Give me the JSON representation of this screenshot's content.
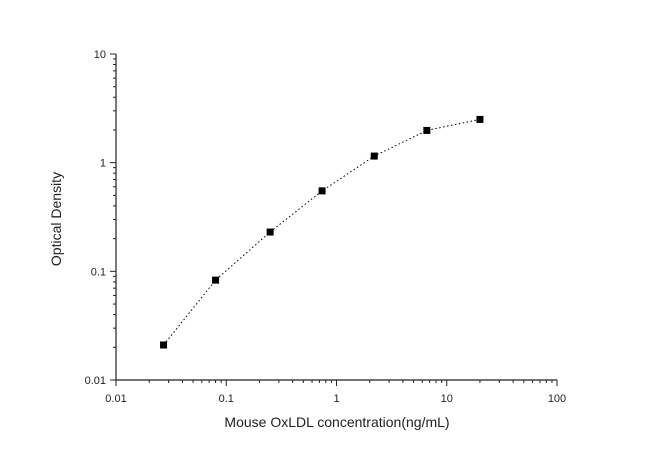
{
  "chart_data": {
    "type": "scatter",
    "x_scale": "log",
    "y_scale": "log",
    "xlabel": "Mouse OxLDL  concentration(ng/mL)",
    "ylabel": "Optical  Density",
    "xlim": [
      0.01,
      100
    ],
    "ylim": [
      0.01,
      10
    ],
    "x_ticks": [
      {
        "value": 0.01,
        "label": "0.01"
      },
      {
        "value": 0.1,
        "label": "0.1"
      },
      {
        "value": 1,
        "label": "1"
      },
      {
        "value": 10,
        "label": "10"
      },
      {
        "value": 100,
        "label": "100"
      }
    ],
    "y_ticks": [
      {
        "value": 0.01,
        "label": "0.01"
      },
      {
        "value": 0.1,
        "label": "0.1"
      },
      {
        "value": 1,
        "label": "1"
      },
      {
        "value": 10,
        "label": "10"
      }
    ],
    "grid": false,
    "series": [
      {
        "marker": "square",
        "line": "dotted",
        "color": "#000000",
        "points": [
          {
            "x": 0.027,
            "y": 0.021
          },
          {
            "x": 0.08,
            "y": 0.083
          },
          {
            "x": 0.25,
            "y": 0.23
          },
          {
            "x": 0.74,
            "y": 0.55
          },
          {
            "x": 2.2,
            "y": 1.15
          },
          {
            "x": 6.6,
            "y": 1.98
          },
          {
            "x": 20,
            "y": 2.5
          }
        ]
      }
    ]
  }
}
